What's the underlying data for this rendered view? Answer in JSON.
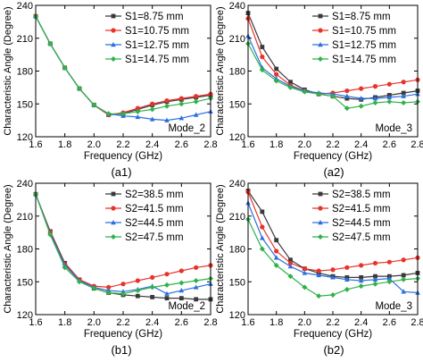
{
  "chart_data": [
    {
      "type": "line",
      "caption": "(a1)",
      "annotation": "Mode_2",
      "xlabel": "Frequency (GHz)",
      "ylabel": "Characteristic Angle (Degree)",
      "xlim": [
        1.6,
        2.8
      ],
      "ylim": [
        120,
        240
      ],
      "xticks": [
        "1.6",
        "1.8",
        "2.0",
        "2.2",
        "2.4",
        "2.6",
        "2.8"
      ],
      "yticks": [
        "120",
        "150",
        "180",
        "210",
        "240"
      ],
      "legend_position": "top-right",
      "grid": false,
      "x": [
        1.6,
        1.7,
        1.8,
        1.9,
        2.0,
        2.1,
        2.2,
        2.3,
        2.4,
        2.5,
        2.6,
        2.7,
        2.8
      ],
      "series": [
        {
          "name": "S1=8.75 mm",
          "color": "#3a3a3a",
          "marker": "square",
          "values": [
            230,
            205,
            183,
            164,
            149,
            140,
            141,
            145,
            149,
            152,
            154,
            156,
            158
          ]
        },
        {
          "name": "S1=10.75 mm",
          "color": "#e8332b",
          "marker": "circle",
          "values": [
            230,
            205,
            183,
            164,
            149,
            140,
            142,
            146,
            150,
            153,
            155,
            157,
            159
          ]
        },
        {
          "name": "S1=12.75 mm",
          "color": "#2b6fe0",
          "marker": "triangle",
          "values": [
            230,
            205,
            183,
            164,
            149,
            141,
            139,
            138,
            136,
            135,
            137,
            140,
            143
          ]
        },
        {
          "name": "S1=14.75 mm",
          "color": "#2fb24a",
          "marker": "diamond",
          "values": [
            230,
            205,
            183,
            164,
            149,
            141,
            141,
            143,
            145,
            148,
            150,
            152,
            155
          ]
        }
      ]
    },
    {
      "type": "line",
      "caption": "(a2)",
      "annotation": "Mode_3",
      "xlabel": "Frequency (GHz)",
      "ylabel": "Characteristic Angle (Degree)",
      "xlim": [
        1.6,
        2.8
      ],
      "ylim": [
        120,
        240
      ],
      "xticks": [
        "1.6",
        "1.8",
        "2.0",
        "2.2",
        "2.4",
        "2.6",
        "2.8"
      ],
      "yticks": [
        "120",
        "150",
        "180",
        "210",
        "240"
      ],
      "legend_position": "top-right",
      "grid": false,
      "x": [
        1.6,
        1.7,
        1.8,
        1.9,
        2.0,
        2.1,
        2.2,
        2.3,
        2.4,
        2.5,
        2.6,
        2.7,
        2.8
      ],
      "series": [
        {
          "name": "S1=8.75 mm",
          "color": "#3a3a3a",
          "marker": "square",
          "values": [
            233,
            202,
            182,
            170,
            163,
            159,
            157,
            155,
            154,
            156,
            158,
            160,
            162
          ]
        },
        {
          "name": "S1=10.75 mm",
          "color": "#e8332b",
          "marker": "circle",
          "values": [
            228,
            193,
            177,
            167,
            162,
            159,
            160,
            162,
            164,
            166,
            168,
            170,
            172
          ]
        },
        {
          "name": "S1=12.75 mm",
          "color": "#2b6fe0",
          "marker": "triangle",
          "values": [
            212,
            183,
            173,
            166,
            162,
            160,
            159,
            157,
            155,
            155,
            156,
            157,
            159
          ]
        },
        {
          "name": "S1=14.75 mm",
          "color": "#2fb24a",
          "marker": "diamond",
          "values": [
            205,
            181,
            171,
            165,
            161,
            159,
            157,
            146,
            148,
            151,
            152,
            151,
            152
          ]
        }
      ]
    },
    {
      "type": "line",
      "caption": "(b1)",
      "annotation": "Mode_2",
      "xlabel": "Frequency (GHz)",
      "ylabel": "Characteristic Angle (Degree)",
      "xlim": [
        1.6,
        2.8
      ],
      "ylim": [
        120,
        240
      ],
      "xticks": [
        "1.6",
        "1.8",
        "2.0",
        "2.2",
        "2.4",
        "2.6",
        "2.8"
      ],
      "yticks": [
        "120",
        "150",
        "180",
        "210",
        "240"
      ],
      "legend_position": "top-right",
      "grid": false,
      "x": [
        1.6,
        1.7,
        1.8,
        1.9,
        2.0,
        2.1,
        2.2,
        2.3,
        2.4,
        2.5,
        2.6,
        2.7,
        2.8
      ],
      "series": [
        {
          "name": "S2=38.5 mm",
          "color": "#3a3a3a",
          "marker": "square",
          "values": [
            230,
            196,
            167,
            152,
            144,
            140,
            138,
            137,
            136,
            135,
            135,
            134,
            134
          ]
        },
        {
          "name": "S2=41.5 mm",
          "color": "#e8332b",
          "marker": "circle",
          "values": [
            230,
            195,
            166,
            152,
            146,
            145,
            148,
            151,
            154,
            157,
            160,
            163,
            165
          ]
        },
        {
          "name": "S2=44.5 mm",
          "color": "#2b6fe0",
          "marker": "triangle",
          "values": [
            230,
            194,
            165,
            151,
            145,
            142,
            141,
            143,
            146,
            139,
            142,
            145,
            148
          ]
        },
        {
          "name": "S2=47.5 mm",
          "color": "#2fb24a",
          "marker": "diamond",
          "values": [
            230,
            193,
            163,
            150,
            144,
            140,
            139,
            142,
            145,
            147,
            149,
            151,
            153
          ]
        }
      ]
    },
    {
      "type": "line",
      "caption": "(b2)",
      "annotation": "Mode_3",
      "xlabel": "Frequency (GHz)",
      "ylabel": "Characteristic Angle (Degree)",
      "xlim": [
        1.6,
        2.8
      ],
      "ylim": [
        120,
        240
      ],
      "xticks": [
        "1.6",
        "1.8",
        "2.0",
        "2.2",
        "2.4",
        "2.6",
        "2.8"
      ],
      "yticks": [
        "120",
        "150",
        "180",
        "210",
        "240"
      ],
      "legend_position": "top-right",
      "grid": false,
      "x": [
        1.6,
        1.7,
        1.8,
        1.9,
        2.0,
        2.1,
        2.2,
        2.3,
        2.4,
        2.5,
        2.6,
        2.7,
        2.8
      ],
      "series": [
        {
          "name": "S2=38.5 mm",
          "color": "#3a3a3a",
          "marker": "square",
          "values": [
            233,
            214,
            188,
            170,
            162,
            158,
            155,
            154,
            154,
            155,
            155,
            156,
            158
          ]
        },
        {
          "name": "S2=41.5 mm",
          "color": "#e8332b",
          "marker": "circle",
          "values": [
            232,
            200,
            178,
            167,
            162,
            160,
            161,
            163,
            165,
            167,
            168,
            170,
            172
          ]
        },
        {
          "name": "S2=44.5 mm",
          "color": "#2b6fe0",
          "marker": "triangle",
          "values": [
            222,
            190,
            172,
            164,
            158,
            156,
            154,
            152,
            151,
            152,
            153,
            141,
            140
          ]
        },
        {
          "name": "S2=47.5 mm",
          "color": "#2fb24a",
          "marker": "diamond",
          "values": [
            207,
            180,
            165,
            155,
            145,
            137,
            138,
            143,
            146,
            148,
            150,
            152,
            153
          ]
        }
      ]
    }
  ]
}
